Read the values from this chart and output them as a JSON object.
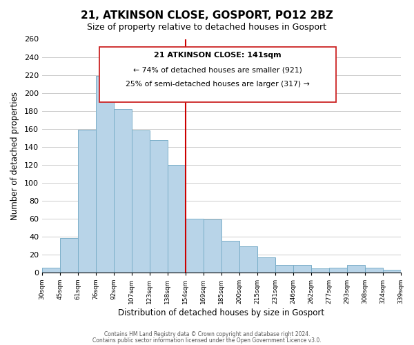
{
  "title": "21, ATKINSON CLOSE, GOSPORT, PO12 2BZ",
  "subtitle": "Size of property relative to detached houses in Gosport",
  "xlabel": "Distribution of detached houses by size in Gosport",
  "ylabel": "Number of detached properties",
  "categories": [
    "30sqm",
    "45sqm",
    "61sqm",
    "76sqm",
    "92sqm",
    "107sqm",
    "123sqm",
    "138sqm",
    "154sqm",
    "169sqm",
    "185sqm",
    "200sqm",
    "215sqm",
    "231sqm",
    "246sqm",
    "262sqm",
    "277sqm",
    "293sqm",
    "308sqm",
    "324sqm",
    "339sqm"
  ],
  "values": [
    5,
    38,
    159,
    219,
    182,
    158,
    147,
    120,
    60,
    59,
    35,
    29,
    17,
    8,
    8,
    4,
    5,
    8,
    5,
    3
  ],
  "bar_color": "#b8d4e8",
  "bar_edge_color": "#7aaec8",
  "marker_bin_index": 7,
  "marker_color": "#cc0000",
  "box_text_line1": "21 ATKINSON CLOSE: 141sqm",
  "box_text_line2": "← 74% of detached houses are smaller (921)",
  "box_text_line3": "25% of semi-detached houses are larger (317) →",
  "ylim": [
    0,
    260
  ],
  "yticks": [
    0,
    20,
    40,
    60,
    80,
    100,
    120,
    140,
    160,
    180,
    200,
    220,
    240,
    260
  ],
  "footer_line1": "Contains HM Land Registry data © Crown copyright and database right 2024.",
  "footer_line2": "Contains public sector information licensed under the Open Government Licence v3.0.",
  "background_color": "#ffffff",
  "grid_color": "#cccccc"
}
